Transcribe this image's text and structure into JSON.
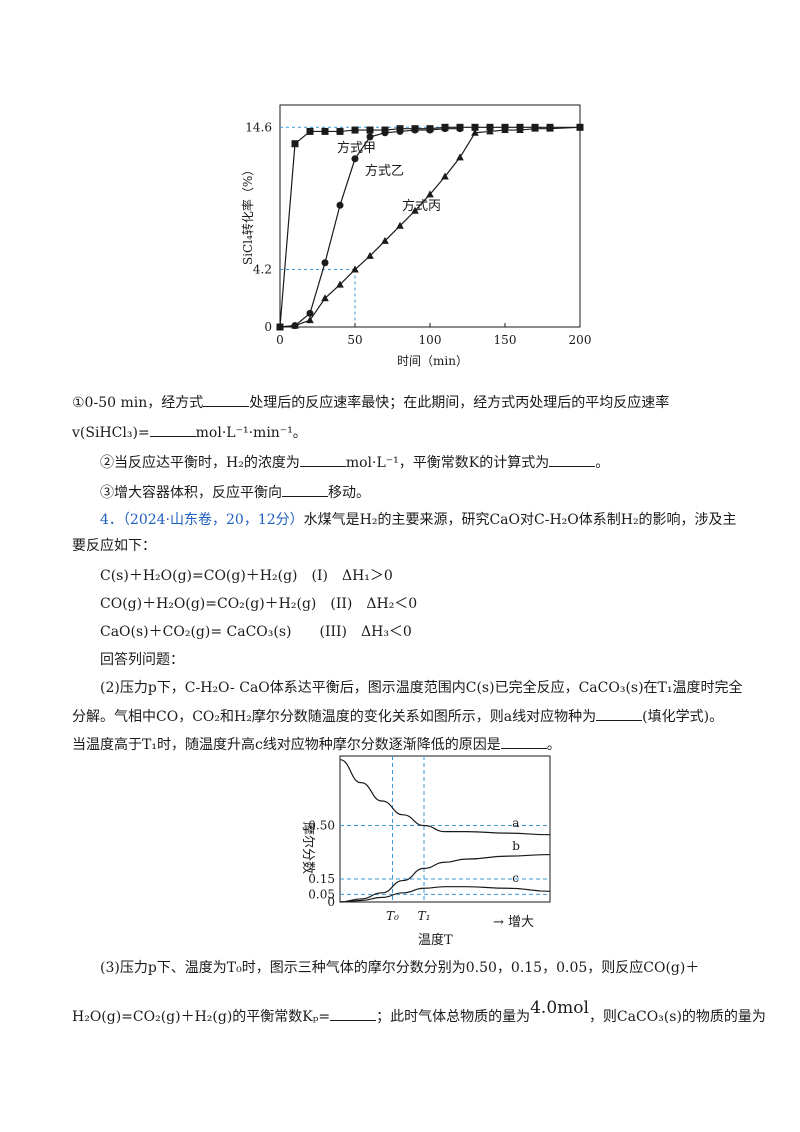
{
  "chart1": {
    "type": "line",
    "ylabel": "SiCl₄转化率（%）",
    "xlabel": "时间（min）",
    "xticks": [
      "0",
      "50",
      "100",
      "150",
      "200"
    ],
    "yticks": [
      "0",
      "4.2",
      "14.6"
    ],
    "series": [
      {
        "name": "方式甲",
        "marker": "square",
        "x": [
          0,
          10,
          20,
          30,
          40,
          50,
          60,
          70,
          80,
          90,
          100,
          110,
          120,
          130,
          140,
          150,
          160,
          170,
          180,
          200
        ],
        "y": [
          0,
          13.4,
          14.3,
          14.3,
          14.3,
          14.4,
          14.4,
          14.4,
          14.5,
          14.5,
          14.5,
          14.6,
          14.6,
          14.6,
          14.6,
          14.6,
          14.6,
          14.6,
          14.6,
          14.6
        ]
      },
      {
        "name": "方式乙",
        "marker": "circle",
        "x": [
          0,
          10,
          20,
          30,
          40,
          50,
          60,
          70,
          80,
          90,
          100,
          110,
          120
        ],
        "y": [
          0,
          0.1,
          1.0,
          4.7,
          8.9,
          12.3,
          13.9,
          14.2,
          14.3,
          14.4,
          14.4,
          14.5,
          14.5
        ]
      },
      {
        "name": "方式丙",
        "marker": "triangle",
        "x": [
          0,
          10,
          20,
          30,
          40,
          50,
          60,
          70,
          80,
          90,
          100,
          110,
          120,
          130,
          140,
          150,
          160,
          170,
          180,
          200
        ],
        "y": [
          0,
          0.1,
          0.5,
          2.1,
          3.1,
          4.2,
          5.2,
          6.3,
          7.4,
          8.5,
          9.7,
          11.0,
          12.4,
          14.2,
          14.3,
          14.4,
          14.4,
          14.5,
          14.5,
          14.6
        ]
      }
    ]
  },
  "q1_line1": "①0-50 min，经方式",
  "q1_line1b": "处理后的反应速率最快；在此期间，经方式丙处理后的平均反应速率",
  "q1_line2a": "v(SiHCl₃)=",
  "q1_line2b": "mol·L⁻¹·min⁻¹。",
  "q2_a": "②当反应达平衡时，H₂的浓度为",
  "q2_b": "mol·L⁻¹，平衡常数K的计算式为",
  "q2_c": "。",
  "q3_a": "③增大容器体积，反应平衡向",
  "q3_b": "移动。",
  "p4_num": "4．",
  "p4_src": "（2024·山东卷，20，12分）",
  "p4_text": "水煤气是H₂的主要来源，研究CaO对C-H₂O体系制H₂的影响，涉及主",
  "p4_text2": "要反应如下：",
  "rx1": "C(s)＋H₂O(g)=CO(g)＋H₂(g)　(I)　ΔH₁＞0",
  "rx2": "CO(g)＋H₂O(g)=CO₂(g)＋H₂(g)　(II)　ΔH₂＜0",
  "rx3": "CaO(s)＋CO₂(g)=  CaCO₃(s)　　(III)　ΔH₃＜0",
  "answer": "回答列问题：",
  "p2_1": "(2)压力p下，C-H₂O- CaO体系达平衡后，图示温度范围内C(s)已完全反应，CaCO₃(s)在T₁温度时完全",
  "p2_2a": "分解。气相中CO，CO₂和H₂摩尔分数随温度的变化关系如图所示，则a线对应物种为",
  "p2_2b": "(填化学式)。",
  "p2_3a": "当温度高于T₁时，随温度升高c线对应物种摩尔分数逐渐降低的原因是",
  "p2_3b": "。",
  "chart2": {
    "type": "line",
    "ylabel": "摩尔分数",
    "xlabel": "温度T",
    "xticks": [
      "T₀",
      "T₁"
    ],
    "arrow_label": "→ 增大",
    "yticks": [
      "0",
      "0.05",
      "0.15",
      "0.50"
    ],
    "series": [
      {
        "name": "a",
        "x": [
          0,
          0.1,
          0.2,
          0.3,
          0.4,
          0.5,
          0.6,
          0.8,
          1.0
        ],
        "y": [
          0.93,
          0.78,
          0.66,
          0.57,
          0.5,
          0.46,
          0.46,
          0.45,
          0.44
        ]
      },
      {
        "name": "b",
        "x": [
          0,
          0.1,
          0.2,
          0.3,
          0.4,
          0.5,
          0.6,
          0.8,
          1.0
        ],
        "y": [
          0.0,
          0.02,
          0.06,
          0.14,
          0.22,
          0.26,
          0.28,
          0.3,
          0.31
        ]
      },
      {
        "name": "c",
        "x": [
          0,
          0.1,
          0.2,
          0.3,
          0.4,
          0.5,
          0.6,
          0.8,
          1.0
        ],
        "y": [
          0.0,
          0.01,
          0.03,
          0.06,
          0.09,
          0.1,
          0.1,
          0.09,
          0.07
        ]
      }
    ]
  },
  "p3_1": "(3)压力p下、温度为T₀时，图示三种气体的摩尔分数分别为0.50，0.15，0.05，则反应CO(g)＋",
  "p3_2a": "H₂O(g)=CO₂(g)＋H₂(g)的平衡常数Kₚ=",
  "p3_2b": "；此时气体总物质的量为",
  "p3_2c": "4.0mol",
  "p3_2d": "，则CaCO₃(s)的物质的量为"
}
